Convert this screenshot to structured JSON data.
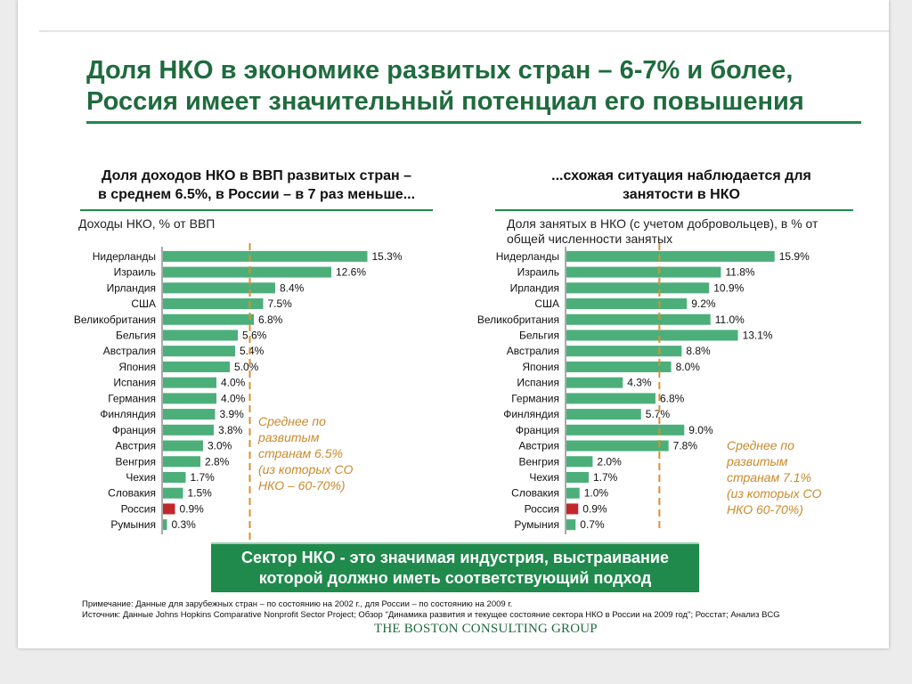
{
  "title": {
    "line1": "Доля НКО в экономике развитых стран – 6-7% и более,",
    "line2": "Россия имеет значительный потенциал его повышения"
  },
  "left_panel": {
    "heading_line1": "Доля доходов НКО в ВВП развитых стран –",
    "heading_line2": "в среднем 6.5%, в России – в 7 раз меньше...",
    "subtitle": "Доходы НКО, % от ВВП",
    "avg_note": [
      "Среднее по",
      "развитым",
      "странам 6.5%",
      "(из которых СО",
      "НКО – 60-70%)"
    ]
  },
  "right_panel": {
    "heading_line1": "...схожая ситуация наблюдается для",
    "heading_line2": "занятости в НКО",
    "subtitle_line1": "Доля занятых в НКО (с учетом добровольцев), в % от",
    "subtitle_line2": "общей численности занятых",
    "avg_note": [
      "Среднее по",
      "развитым",
      "странам 7.1%",
      "(из которых СО",
      "НКО 60-70%)"
    ]
  },
  "callout": {
    "line1": "Сектор НКО - это значимая индустрия, выстраивание",
    "line2": "которой должно иметь соответствующий подход"
  },
  "footnote": {
    "note": "Примечание: Данные для зарубежных стран – по состоянию на 2002 г., для России – по состоянию на 2009 г.",
    "source": "Источник: Данные Johns Hopkins Comparative Nonprofit Sector Project; Обзор \"Динамика развития и текущее состояние сектора НКО в России на 2009 год\"; Росстат; Анализ BCG"
  },
  "logo_text": "THE BOSTON CONSULTING GROUP",
  "colors": {
    "bar": "#4caf7a",
    "highlight": "#c0282b",
    "average": "#d9902f",
    "accent": "#1f8a4c"
  },
  "chart_data": [
    {
      "type": "bar",
      "orientation": "horizontal",
      "title": "Доля доходов НКО в ВВП развитых стран – в среднем 6.5%, в России – в 7 раз меньше...",
      "xlabel": "Доходы НКО, % от ВВП",
      "categories": [
        "Нидерланды",
        "Израиль",
        "Ирландия",
        "США",
        "Великобритания",
        "Бельгия",
        "Австралия",
        "Япония",
        "Испания",
        "Германия",
        "Финляндия",
        "Франция",
        "Австрия",
        "Венгрия",
        "Чехия",
        "Словакия",
        "Россия",
        "Румыния"
      ],
      "values": [
        15.3,
        12.6,
        8.4,
        7.5,
        6.8,
        5.6,
        5.4,
        5.0,
        4.0,
        4.0,
        3.9,
        3.8,
        3.0,
        2.8,
        1.7,
        1.5,
        0.9,
        0.3
      ],
      "labels": [
        "15.3%",
        "12.6%",
        "8.4%",
        "7.5%",
        "6.8%",
        "5.6%",
        "5.4%",
        "5.0%",
        "4.0%",
        "4.0%",
        "3.9%",
        "3.8%",
        "3.0%",
        "2.8%",
        "1.7%",
        "1.5%",
        "0.9%",
        "0.3%"
      ],
      "highlight": "Россия",
      "average": 6.5,
      "xlim": [
        0,
        16
      ]
    },
    {
      "type": "bar",
      "orientation": "horizontal",
      "title": "...схожая ситуация наблюдается для занятости в НКО",
      "xlabel": "Доля занятых в НКО (с учетом добровольцев), в % от общей численности занятых",
      "categories": [
        "Нидерланды",
        "Израиль",
        "Ирландия",
        "США",
        "Великобритания",
        "Бельгия",
        "Австралия",
        "Япония",
        "Испания",
        "Германия",
        "Финляндия",
        "Франция",
        "Австрия",
        "Венгрия",
        "Чехия",
        "Словакия",
        "Россия",
        "Румыния"
      ],
      "values": [
        15.9,
        11.8,
        10.9,
        9.2,
        11.0,
        13.1,
        8.8,
        8.0,
        4.3,
        6.8,
        5.7,
        9.0,
        7.8,
        2.0,
        1.7,
        1.0,
        0.9,
        0.7
      ],
      "labels": [
        "15.9%",
        "11.8%",
        "10.9%",
        "9.2%",
        "11.0%",
        "13.1%",
        "8.8%",
        "8.0%",
        "4.3%",
        "6.8%",
        "5.7%",
        "9.0%",
        "7.8%",
        "2.0%",
        "1.7%",
        "1.0%",
        "0.9%",
        "0.7%"
      ],
      "highlight": "Россия",
      "average": 7.1,
      "xlim": [
        0,
        16
      ]
    }
  ]
}
